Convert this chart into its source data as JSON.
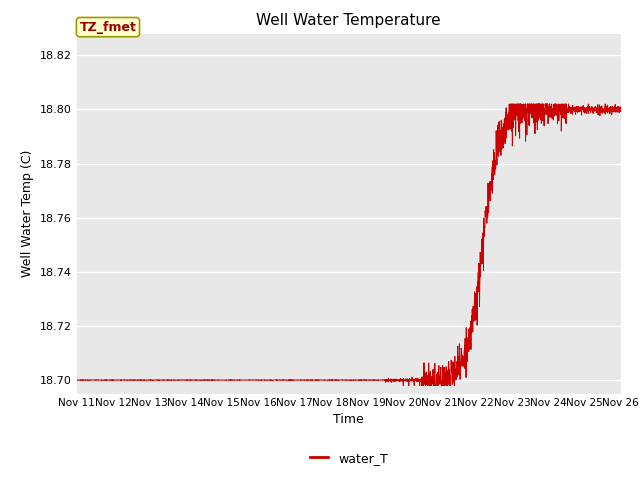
{
  "title": "Well Water Temperature",
  "xlabel": "Time",
  "ylabel": "Well Water Temp (C)",
  "line_color": "#cc0000",
  "line_label": "water_T",
  "annotation_text": "TZ_fmet",
  "annotation_bg": "#ffffcc",
  "annotation_border": "#999900",
  "annotation_text_color": "#990000",
  "ylim": [
    18.695,
    18.828
  ],
  "yticks": [
    18.7,
    18.72,
    18.74,
    18.76,
    18.78,
    18.8,
    18.82
  ],
  "background_color": "#e8e8e8",
  "x_tick_labels": [
    "Nov 11",
    "Nov 12",
    "Nov 13",
    "Nov 14",
    "Nov 15",
    "Nov 16",
    "Nov 17",
    "Nov 18",
    "Nov 19",
    "Nov 20",
    "Nov 21",
    "Nov 22",
    "Nov 23",
    "Nov 24",
    "Nov 25",
    "Nov 26"
  ]
}
